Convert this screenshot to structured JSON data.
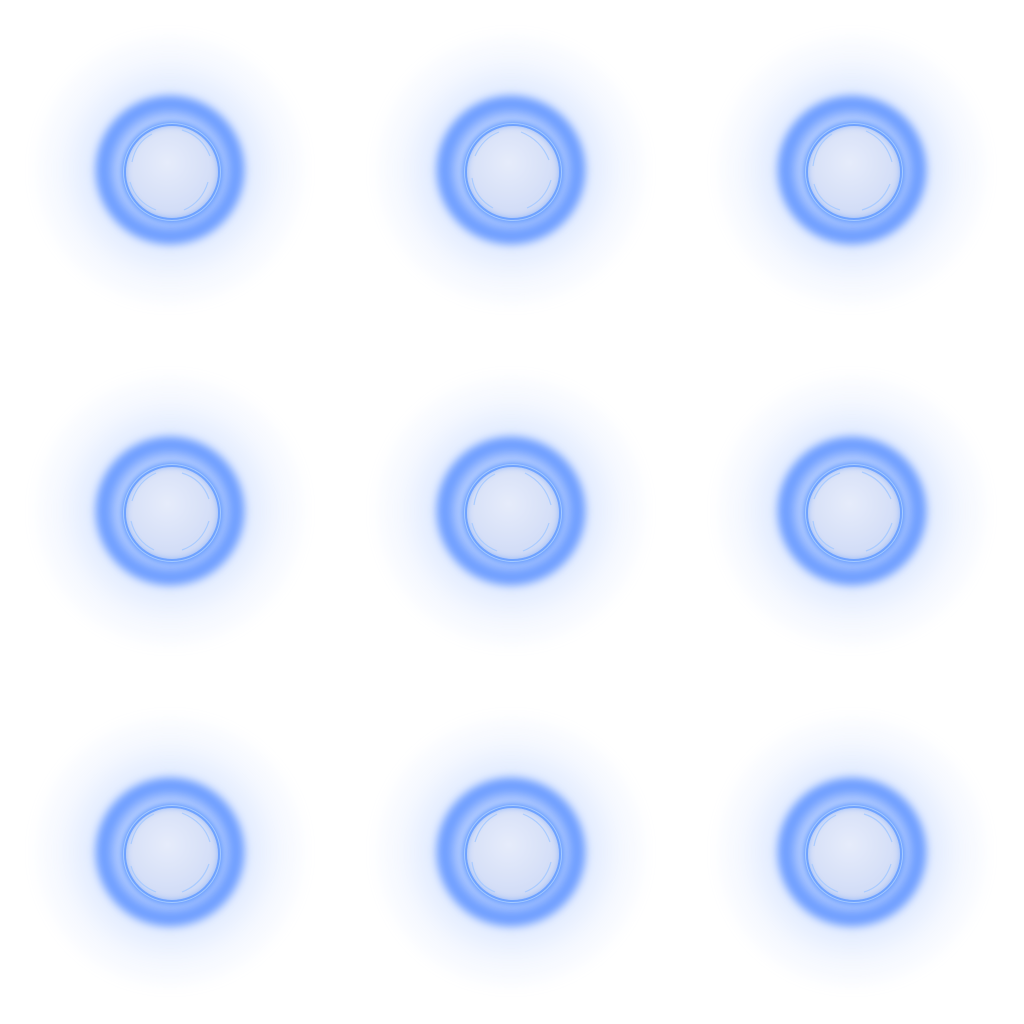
{
  "sprite_sheet": {
    "rows": 3,
    "columns": 3,
    "background_color": "#ffffff",
    "orb_glow_color": "#3f7dff",
    "orb_core_color": "#d9e2f8",
    "orb_rim_color": "#6ea2ff",
    "frames": [
      {
        "id": "orb-frame-1",
        "icon": "glowing-orb-icon"
      },
      {
        "id": "orb-frame-2",
        "icon": "glowing-orb-icon"
      },
      {
        "id": "orb-frame-3",
        "icon": "glowing-orb-icon"
      },
      {
        "id": "orb-frame-4",
        "icon": "glowing-orb-icon"
      },
      {
        "id": "orb-frame-5",
        "icon": "glowing-orb-icon"
      },
      {
        "id": "orb-frame-6",
        "icon": "glowing-orb-icon"
      },
      {
        "id": "orb-frame-7",
        "icon": "glowing-orb-icon"
      },
      {
        "id": "orb-frame-8",
        "icon": "glowing-orb-icon"
      },
      {
        "id": "orb-frame-9",
        "icon": "glowing-orb-icon"
      }
    ]
  }
}
